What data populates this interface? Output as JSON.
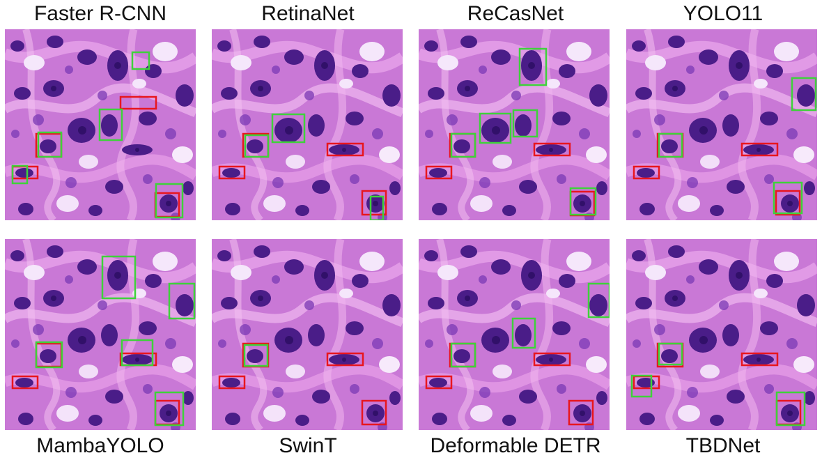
{
  "figure": {
    "methods": [
      "Faster R-CNN",
      "RetinaNet",
      "ReCasNet",
      "YOLO11",
      "MambaYOLO",
      "SwinT",
      "Deformable DETR",
      "TBDNet"
    ]
  },
  "colors": {
    "ground_truth_box": "#e8161e",
    "prediction_box": "#3fd13b",
    "tissue_background": "#c978d6",
    "nucleus": "#4a1d88"
  }
}
